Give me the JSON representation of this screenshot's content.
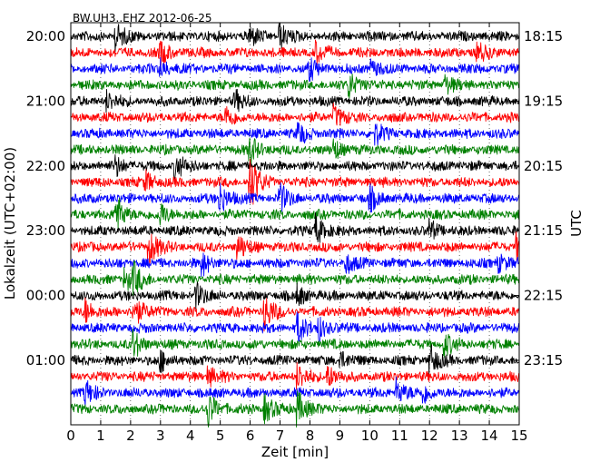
{
  "chart_data": {
    "type": "line",
    "title": "BW.UH3..EHZ 2012-06-25",
    "xlabel": "Zeit  [min]",
    "ylabel_left": "Lokalzeit (UTC+02:00)",
    "ylabel_right": "UTC",
    "xlim": [
      0,
      15
    ],
    "x_ticks": [
      "0",
      "1",
      "2",
      "3",
      "4",
      "5",
      "6",
      "7",
      "8",
      "9",
      "10",
      "11",
      "12",
      "13",
      "14",
      "15"
    ],
    "grid": "dotted vertical lines at each minute",
    "trace_interval_minutes": 15,
    "left_time_labels": [
      "20:00",
      "21:00",
      "22:00",
      "23:00",
      "00:00",
      "01:00"
    ],
    "right_time_labels": [
      "18:15",
      "19:15",
      "20:15",
      "21:15",
      "22:15",
      "23:15"
    ],
    "trace_colors": [
      "#000000",
      "#ff0000",
      "#0000ff",
      "#008000"
    ],
    "series": [
      {
        "start": "20:00",
        "color": "#000000",
        "events": [
          [
            1.5,
            14
          ],
          [
            6,
            10
          ],
          [
            7,
            12
          ]
        ]
      },
      {
        "start": "20:15",
        "color": "#ff0000",
        "events": [
          [
            3,
            12
          ],
          [
            8.2,
            10
          ],
          [
            13.6,
            10
          ]
        ]
      },
      {
        "start": "20:30",
        "color": "#0000ff",
        "events": [
          [
            3,
            10
          ],
          [
            8,
            10
          ],
          [
            10,
            10
          ]
        ]
      },
      {
        "start": "20:45",
        "color": "#008000",
        "events": [
          [
            9.3,
            14
          ],
          [
            12.5,
            10
          ]
        ]
      },
      {
        "start": "21:00",
        "color": "#000000",
        "events": [
          [
            1.2,
            10
          ],
          [
            5.5,
            10
          ]
        ]
      },
      {
        "start": "21:15",
        "color": "#ff0000",
        "events": [
          [
            5.2,
            10
          ],
          [
            8.8,
            12
          ]
        ]
      },
      {
        "start": "21:30",
        "color": "#0000ff",
        "events": [
          [
            7.6,
            12
          ],
          [
            10.2,
            10
          ]
        ]
      },
      {
        "start": "21:45",
        "color": "#008000",
        "events": [
          [
            8.8,
            10
          ],
          [
            6,
            14
          ]
        ]
      },
      {
        "start": "22:00",
        "color": "#000000",
        "events": [
          [
            3.5,
            14
          ],
          [
            1.5,
            10
          ]
        ]
      },
      {
        "start": "22:15",
        "color": "#ff0000",
        "events": [
          [
            2.5,
            10
          ],
          [
            6,
            30
          ]
        ]
      },
      {
        "start": "22:30",
        "color": "#0000ff",
        "events": [
          [
            5,
            16
          ],
          [
            7,
            14
          ],
          [
            10,
            12
          ]
        ]
      },
      {
        "start": "22:45",
        "color": "#008000",
        "events": [
          [
            1.5,
            22
          ],
          [
            3,
            12
          ]
        ]
      },
      {
        "start": "23:00",
        "color": "#000000",
        "events": [
          [
            8.2,
            16
          ],
          [
            12,
            10
          ]
        ]
      },
      {
        "start": "23:15",
        "color": "#ff0000",
        "events": [
          [
            2.6,
            20
          ],
          [
            5.6,
            12
          ],
          [
            14.9,
            14
          ]
        ]
      },
      {
        "start": "23:30",
        "color": "#0000ff",
        "events": [
          [
            4.4,
            12
          ],
          [
            9.2,
            10
          ],
          [
            14.3,
            10
          ]
        ]
      },
      {
        "start": "23:45",
        "color": "#008000",
        "events": [
          [
            1.8,
            12
          ],
          [
            2.1,
            14
          ]
        ]
      },
      {
        "start": "00:00",
        "color": "#000000",
        "events": [
          [
            4.2,
            12
          ],
          [
            7.6,
            10
          ]
        ]
      },
      {
        "start": "00:15",
        "color": "#ff0000",
        "events": [
          [
            0.5,
            12
          ],
          [
            2.1,
            18
          ],
          [
            6.5,
            18
          ]
        ]
      },
      {
        "start": "00:30",
        "color": "#0000ff",
        "events": [
          [
            7.6,
            14
          ],
          [
            8.3,
            12
          ]
        ]
      },
      {
        "start": "00:45",
        "color": "#008000",
        "events": [
          [
            2.1,
            14
          ],
          [
            12.5,
            12
          ]
        ]
      },
      {
        "start": "01:00",
        "color": "#000000",
        "events": [
          [
            3,
            10
          ],
          [
            12,
            16
          ],
          [
            9,
            10
          ]
        ]
      },
      {
        "start": "01:15",
        "color": "#ff0000",
        "events": [
          [
            4.6,
            10
          ],
          [
            7.6,
            12
          ],
          [
            8.6,
            12
          ]
        ]
      },
      {
        "start": "01:30",
        "color": "#0000ff",
        "events": [
          [
            0.5,
            12
          ],
          [
            10.9,
            14
          ],
          [
            11.8,
            10
          ]
        ]
      },
      {
        "start": "01:45",
        "color": "#008000",
        "events": [
          [
            4.6,
            18
          ],
          [
            6.5,
            14
          ],
          [
            7.6,
            18
          ]
        ]
      }
    ]
  }
}
